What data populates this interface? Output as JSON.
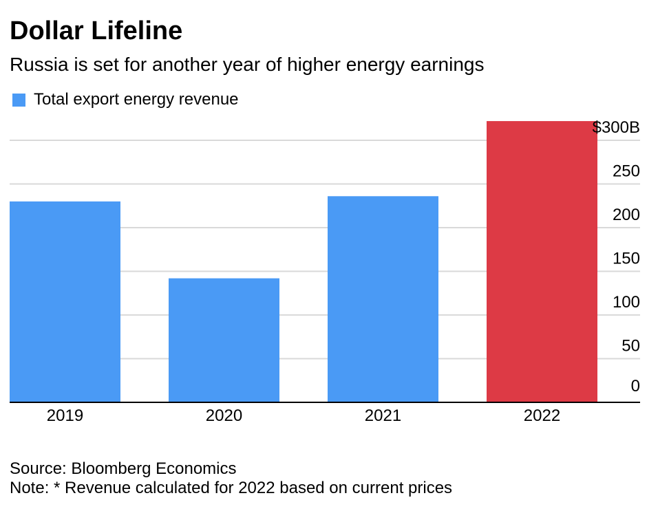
{
  "header": {
    "title": "Dollar Lifeline",
    "subtitle": "Russia is set for another year of higher energy earnings"
  },
  "legend": {
    "label": "Total export energy revenue",
    "color": "#4a9af5"
  },
  "footer": {
    "source": "Source: Bloomberg Economics",
    "note": "Note: * Revenue calculated for 2022 based on current prices"
  },
  "colors": {
    "bar": "#4a9af5",
    "highlight": "#dd3a45",
    "grid": "#d9d9d9",
    "axis": "#000000"
  },
  "chart_data": {
    "type": "bar",
    "categories": [
      "2019",
      "2020",
      "2021",
      "2022"
    ],
    "values": [
      230,
      142,
      236,
      322
    ],
    "highlight_index": 3,
    "ylim": [
      0,
      300
    ],
    "yticks": [
      0,
      50,
      100,
      150,
      200,
      250,
      300
    ],
    "ytick_labels": [
      "0",
      "50",
      "100",
      "150",
      "200",
      "250",
      "$300B"
    ],
    "y_axis_position": "right",
    "grid": true,
    "legend_position": "top-left"
  }
}
